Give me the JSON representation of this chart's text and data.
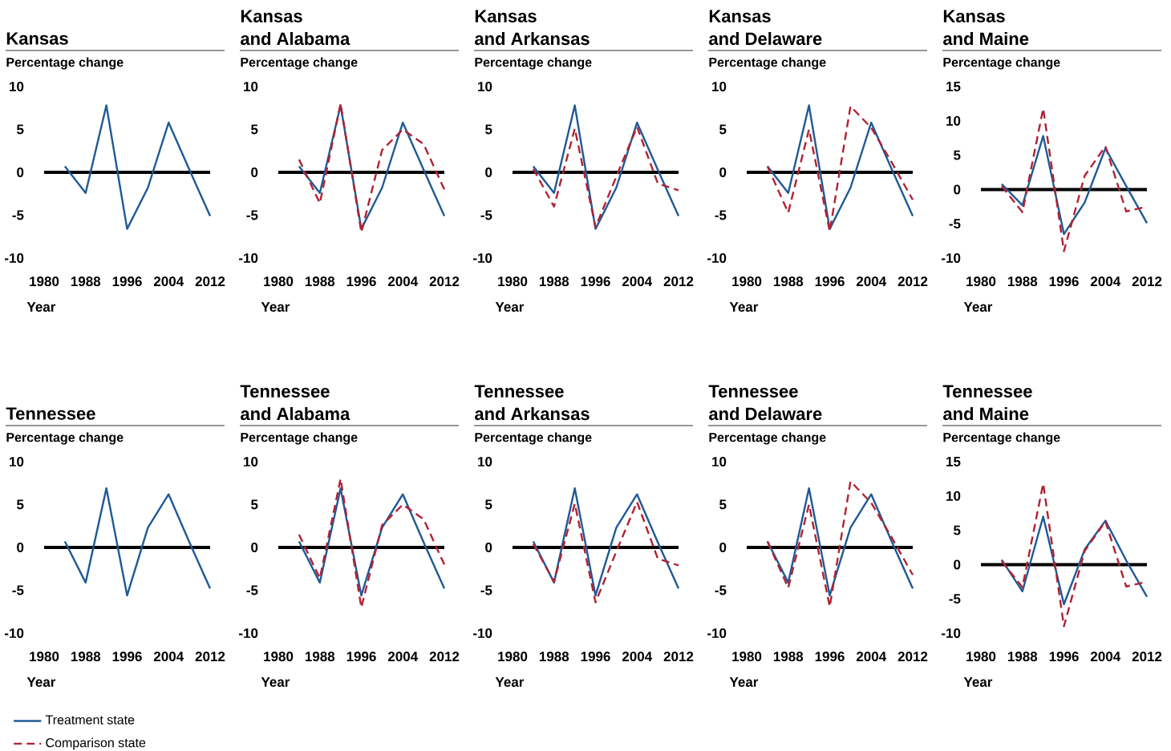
{
  "chart_data": [
    {
      "type": "line",
      "title": "Kansas",
      "ylabel": "Percentage change",
      "xlabel": "Year",
      "x": [
        1984,
        1988,
        1992,
        1996,
        2000,
        2004,
        2008,
        2012
      ],
      "xlim": [
        1980,
        2012
      ],
      "xticks": [
        1980,
        1988,
        1996,
        2004,
        2012
      ],
      "ylim": [
        -10,
        10
      ],
      "yticks": [
        -10,
        -5,
        0,
        5,
        10
      ],
      "ref_lines": [
        {
          "axis": "y",
          "value": 0,
          "color": "#000000"
        }
      ],
      "series": [
        {
          "color": "#1f5a96",
          "values": [
            0.7,
            -2.4,
            7.8,
            -6.6,
            -1.8,
            5.8,
            0.3,
            -5.1
          ]
        }
      ]
    },
    {
      "type": "line",
      "title": "Kansas",
      "subtitle": "and Alabama",
      "ylabel": "Percentage change",
      "xlabel": "Year",
      "x": [
        1984,
        1988,
        1992,
        1996,
        2000,
        2004,
        2008,
        2012
      ],
      "xlim": [
        1980,
        2012
      ],
      "xticks": [
        1980,
        1988,
        1996,
        2004,
        2012
      ],
      "ylim": [
        -10,
        10
      ],
      "yticks": [
        -10,
        -5,
        0,
        5,
        10
      ],
      "ref_lines": [
        {
          "axis": "y",
          "value": 0,
          "color": "#000000"
        }
      ],
      "series": [
        {
          "color": "#1f5a96",
          "values": [
            0.7,
            -2.4,
            7.8,
            -6.6,
            -1.8,
            5.8,
            0.3,
            -5.1
          ]
        },
        {
          "color": "#b22234",
          "line_style": "dashed",
          "values": [
            1.5,
            -3.6,
            8.0,
            -7.0,
            2.6,
            5.0,
            3.3,
            -2.0
          ]
        }
      ]
    },
    {
      "type": "line",
      "title": "Kansas",
      "subtitle": "and Arkansas",
      "ylabel": "Percentage change",
      "xlabel": "Year",
      "x": [
        1984,
        1988,
        1992,
        1996,
        2000,
        2004,
        2008,
        2012
      ],
      "xlim": [
        1980,
        2012
      ],
      "xticks": [
        1980,
        1988,
        1996,
        2004,
        2012
      ],
      "ylim": [
        -10,
        10
      ],
      "yticks": [
        -10,
        -5,
        0,
        5,
        10
      ],
      "ref_lines": [
        {
          "axis": "y",
          "value": 0,
          "color": "#000000"
        }
      ],
      "series": [
        {
          "color": "#1f5a96",
          "values": [
            0.7,
            -2.4,
            7.8,
            -6.6,
            -1.8,
            5.8,
            0.3,
            -5.1
          ]
        },
        {
          "color": "#b22234",
          "line_style": "dashed",
          "values": [
            0.4,
            -4.0,
            5.1,
            -6.4,
            -0.5,
            5.3,
            -1.3,
            -2.1
          ]
        }
      ]
    },
    {
      "type": "line",
      "title": "Kansas",
      "subtitle": "and Delaware",
      "ylabel": "Percentage change",
      "xlabel": "Year",
      "x": [
        1984,
        1988,
        1992,
        1996,
        2000,
        2004,
        2008,
        2012
      ],
      "xlim": [
        1980,
        2012
      ],
      "xticks": [
        1980,
        1988,
        1996,
        2004,
        2012
      ],
      "ylim": [
        -10,
        10
      ],
      "yticks": [
        -10,
        -5,
        0,
        5,
        10
      ],
      "ref_lines": [
        {
          "axis": "y",
          "value": 0,
          "color": "#000000"
        }
      ],
      "series": [
        {
          "color": "#1f5a96",
          "values": [
            0.7,
            -2.4,
            7.8,
            -6.6,
            -1.8,
            5.8,
            0.3,
            -5.1
          ]
        },
        {
          "color": "#b22234",
          "line_style": "dashed",
          "values": [
            0.7,
            -4.7,
            5.0,
            -6.9,
            7.7,
            5.2,
            1.1,
            -3.2
          ]
        }
      ]
    },
    {
      "type": "line",
      "title": "Kansas",
      "subtitle": "and Maine",
      "ylabel": "Percentage change",
      "xlabel": "Year",
      "x": [
        1984,
        1988,
        1992,
        1996,
        2000,
        2004,
        2008,
        2012
      ],
      "xlim": [
        1980,
        2012
      ],
      "xticks": [
        1980,
        1988,
        1996,
        2004,
        2012
      ],
      "ylim": [
        -10,
        15
      ],
      "yticks": [
        -10,
        -5,
        0,
        5,
        10,
        15
      ],
      "ref_lines": [
        {
          "axis": "y",
          "value": 0,
          "color": "#000000"
        }
      ],
      "series": [
        {
          "color": "#1f5a96",
          "values": [
            0.8,
            -2.3,
            7.8,
            -6.5,
            -1.9,
            6.0,
            0.5,
            -4.9
          ]
        },
        {
          "color": "#b22234",
          "line_style": "dashed",
          "values": [
            0.5,
            -3.3,
            11.8,
            -9.0,
            2.0,
            6.3,
            -3.2,
            -2.5
          ]
        }
      ]
    },
    {
      "type": "line",
      "title": "Tennessee",
      "ylabel": "Percentage change",
      "xlabel": "Year",
      "x": [
        1984,
        1988,
        1992,
        1996,
        2000,
        2004,
        2008,
        2012
      ],
      "xlim": [
        1980,
        2012
      ],
      "xticks": [
        1980,
        1988,
        1996,
        2004,
        2012
      ],
      "ylim": [
        -10,
        10
      ],
      "yticks": [
        -10,
        -5,
        0,
        5,
        10
      ],
      "ref_lines": [
        {
          "axis": "y",
          "value": 0,
          "color": "#000000"
        }
      ],
      "series": [
        {
          "color": "#1f5a96",
          "values": [
            0.7,
            -4.1,
            6.9,
            -5.6,
            2.3,
            6.2,
            0.6,
            -4.8
          ]
        }
      ]
    },
    {
      "type": "line",
      "title": "Tennessee",
      "subtitle": "and Alabama",
      "ylabel": "Percentage change",
      "xlabel": "Year",
      "x": [
        1984,
        1988,
        1992,
        1996,
        2000,
        2004,
        2008,
        2012
      ],
      "xlim": [
        1980,
        2012
      ],
      "xticks": [
        1980,
        1988,
        1996,
        2004,
        2012
      ],
      "ylim": [
        -10,
        10
      ],
      "yticks": [
        -10,
        -5,
        0,
        5,
        10
      ],
      "legend": "bottom left",
      "ref_lines": [
        {
          "axis": "y",
          "value": 0,
          "color": "#000000"
        }
      ],
      "series": [
        {
          "name": "Treatment state",
          "color": "#1f5a96",
          "values": [
            0.7,
            -4.1,
            6.9,
            -5.6,
            2.3,
            6.2,
            0.6,
            -4.8
          ]
        },
        {
          "name": "Comparison state",
          "color": "#b22234",
          "line_style": "dashed",
          "values": [
            1.5,
            -3.6,
            8.0,
            -7.0,
            2.6,
            5.0,
            3.3,
            -2.0
          ]
        }
      ]
    },
    {
      "type": "line",
      "title": "Tennessee",
      "subtitle": "and Arkansas",
      "ylabel": "Percentage change",
      "xlabel": "Year",
      "x": [
        1984,
        1988,
        1992,
        1996,
        2000,
        2004,
        2008,
        2012
      ],
      "xlim": [
        1980,
        2012
      ],
      "xticks": [
        1980,
        1988,
        1996,
        2004,
        2012
      ],
      "ylim": [
        -10,
        10
      ],
      "yticks": [
        -10,
        -5,
        0,
        5,
        10
      ],
      "ref_lines": [
        {
          "axis": "y",
          "value": 0,
          "color": "#000000"
        }
      ],
      "series": [
        {
          "color": "#1f5a96",
          "values": [
            0.7,
            -4.1,
            6.9,
            -5.6,
            2.3,
            6.2,
            0.6,
            -4.8
          ]
        },
        {
          "color": "#b22234",
          "line_style": "dashed",
          "values": [
            0.4,
            -4.0,
            5.1,
            -6.4,
            -0.5,
            5.3,
            -1.3,
            -2.1
          ]
        }
      ]
    },
    {
      "type": "line",
      "title": "Tennessee",
      "subtitle": "and Delaware",
      "ylabel": "Percentage change",
      "xlabel": "Year",
      "x": [
        1984,
        1988,
        1992,
        1996,
        2000,
        2004,
        2008,
        2012
      ],
      "xlim": [
        1980,
        2012
      ],
      "xticks": [
        1980,
        1988,
        1996,
        2004,
        2012
      ],
      "ylim": [
        -10,
        10
      ],
      "yticks": [
        -10,
        -5,
        0,
        5,
        10
      ],
      "ref_lines": [
        {
          "axis": "y",
          "value": 0,
          "color": "#000000"
        }
      ],
      "series": [
        {
          "color": "#1f5a96",
          "values": [
            0.7,
            -4.1,
            6.9,
            -5.6,
            2.3,
            6.2,
            0.6,
            -4.8
          ]
        },
        {
          "color": "#b22234",
          "line_style": "dashed",
          "values": [
            0.7,
            -4.7,
            5.0,
            -6.9,
            7.7,
            5.2,
            1.1,
            -3.2
          ]
        }
      ]
    },
    {
      "type": "line",
      "title": "Tennessee",
      "subtitle": "and Maine",
      "ylabel": "Percentage change",
      "xlabel": "Year",
      "x": [
        1984,
        1988,
        1992,
        1996,
        2000,
        2004,
        2008,
        2012
      ],
      "xlim": [
        1980,
        2012
      ],
      "xticks": [
        1980,
        1988,
        1996,
        2004,
        2012
      ],
      "ylim": [
        -10,
        15
      ],
      "yticks": [
        -10,
        -5,
        0,
        5,
        10,
        15
      ],
      "ref_lines": [
        {
          "axis": "y",
          "value": 0,
          "color": "#000000"
        }
      ],
      "series": [
        {
          "color": "#1f5a96",
          "values": [
            0.7,
            -3.9,
            7.0,
            -5.8,
            2.2,
            6.4,
            0.6,
            -4.7
          ]
        },
        {
          "color": "#b22234",
          "line_style": "dashed",
          "values": [
            0.5,
            -3.3,
            11.8,
            -9.0,
            2.0,
            6.3,
            -3.2,
            -2.5
          ]
        }
      ]
    }
  ]
}
